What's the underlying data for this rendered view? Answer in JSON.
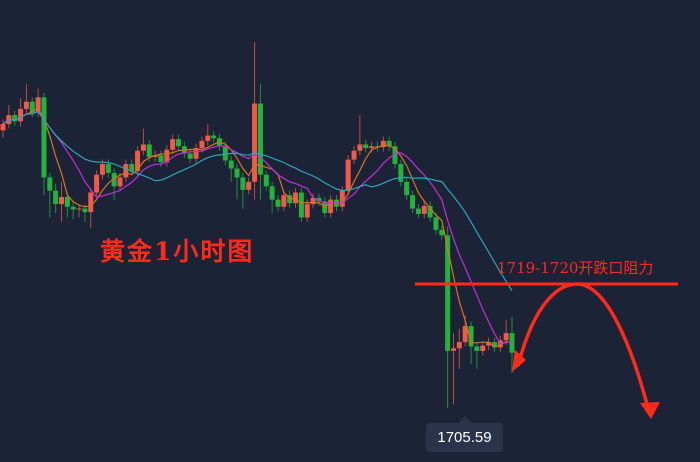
{
  "chart_data": {
    "type": "candlestick",
    "title": "黄金1小时图",
    "colors": {
      "up": "#ef5a4a",
      "down": "#22b33a",
      "ma_fast": "#d9731e",
      "ma_mid": "#c42fd6",
      "ma_slow": "#2aa7b8",
      "annotation": "#ff2a1a",
      "background": "#1c2336"
    },
    "grid": false,
    "candles_ohlc": [
      [
        1736.8,
        1738.0,
        1736.0,
        1737.5
      ],
      [
        1737.5,
        1739.6,
        1737.0,
        1738.5
      ],
      [
        1738.5,
        1739.0,
        1737.3,
        1737.8
      ],
      [
        1737.8,
        1740.4,
        1737.2,
        1739.2
      ],
      [
        1739.2,
        1742.0,
        1738.7,
        1740.0
      ],
      [
        1740.0,
        1740.5,
        1738.3,
        1738.8
      ],
      [
        1738.8,
        1741.5,
        1738.3,
        1740.5
      ],
      [
        1740.5,
        1741.0,
        1729.5,
        1731.5
      ],
      [
        1731.5,
        1732.0,
        1727.0,
        1730.0
      ],
      [
        1730.0,
        1730.8,
        1727.5,
        1728.5
      ],
      [
        1728.5,
        1731.0,
        1726.5,
        1729.3
      ],
      [
        1729.3,
        1729.8,
        1727.0,
        1728.2
      ],
      [
        1728.2,
        1728.7,
        1726.8,
        1727.9
      ],
      [
        1727.9,
        1728.5,
        1727.0,
        1728.0
      ],
      [
        1728.0,
        1728.5,
        1726.5,
        1727.6
      ],
      [
        1727.6,
        1730.3,
        1725.8,
        1729.8
      ],
      [
        1729.8,
        1732.3,
        1729.3,
        1731.8
      ],
      [
        1731.8,
        1733.5,
        1731.3,
        1733.0
      ],
      [
        1733.0,
        1733.5,
        1731.5,
        1732.0
      ],
      [
        1732.0,
        1732.5,
        1729.0,
        1730.5
      ],
      [
        1730.5,
        1732.0,
        1730.0,
        1731.5
      ],
      [
        1731.5,
        1733.5,
        1731.0,
        1733.0
      ],
      [
        1733.0,
        1733.5,
        1731.7,
        1732.2
      ],
      [
        1732.2,
        1735.0,
        1731.7,
        1734.5
      ],
      [
        1734.5,
        1737.0,
        1734.0,
        1735.2
      ],
      [
        1735.2,
        1735.7,
        1733.3,
        1733.8
      ],
      [
        1733.8,
        1734.5,
        1733.3,
        1734.0
      ],
      [
        1734.0,
        1734.5,
        1732.7,
        1733.2
      ],
      [
        1733.2,
        1735.1,
        1732.7,
        1734.6
      ],
      [
        1734.6,
        1736.3,
        1734.1,
        1735.8
      ],
      [
        1735.8,
        1736.3,
        1734.5,
        1735.0
      ],
      [
        1735.0,
        1735.5,
        1733.7,
        1734.2
      ],
      [
        1734.2,
        1734.7,
        1733.1,
        1733.6
      ],
      [
        1733.6,
        1735.3,
        1733.1,
        1734.8
      ],
      [
        1734.8,
        1736.1,
        1734.3,
        1735.6
      ],
      [
        1735.6,
        1737.5,
        1735.1,
        1736.2
      ],
      [
        1736.2,
        1736.7,
        1735.4,
        1735.9
      ],
      [
        1735.9,
        1736.4,
        1734.5,
        1735.0
      ],
      [
        1735.0,
        1735.5,
        1732.9,
        1733.4
      ],
      [
        1733.4,
        1733.9,
        1731.0,
        1732.5
      ],
      [
        1732.5,
        1733.0,
        1729.0,
        1731.5
      ],
      [
        1731.5,
        1732.0,
        1728.0,
        1730.1
      ],
      [
        1730.1,
        1731.5,
        1729.6,
        1731.0
      ],
      [
        1731.0,
        1746.7,
        1729.0,
        1739.8
      ],
      [
        1739.8,
        1742.0,
        1729.0,
        1731.8
      ],
      [
        1731.8,
        1732.3,
        1730.0,
        1730.5
      ],
      [
        1730.5,
        1731.0,
        1727.5,
        1729.0
      ],
      [
        1729.0,
        1729.5,
        1727.7,
        1728.2
      ],
      [
        1728.2,
        1730.0,
        1727.7,
        1729.5
      ],
      [
        1729.5,
        1730.0,
        1728.1,
        1728.6
      ],
      [
        1728.6,
        1730.3,
        1728.1,
        1729.8
      ],
      [
        1729.8,
        1730.3,
        1726.5,
        1727.0
      ],
      [
        1727.0,
        1729.0,
        1726.5,
        1728.5
      ],
      [
        1728.5,
        1729.7,
        1728.0,
        1729.2
      ],
      [
        1729.2,
        1729.7,
        1728.3,
        1728.8
      ],
      [
        1728.8,
        1729.3,
        1727.0,
        1727.5
      ],
      [
        1727.5,
        1729.5,
        1727.0,
        1729.0
      ],
      [
        1729.0,
        1729.5,
        1727.7,
        1728.2
      ],
      [
        1728.2,
        1730.5,
        1727.7,
        1730.0
      ],
      [
        1730.0,
        1734.0,
        1729.5,
        1733.5
      ],
      [
        1733.5,
        1735.0,
        1733.0,
        1734.5
      ],
      [
        1734.5,
        1738.5,
        1734.0,
        1735.2
      ],
      [
        1735.2,
        1735.7,
        1734.3,
        1734.8
      ],
      [
        1734.8,
        1735.5,
        1734.3,
        1735.0
      ],
      [
        1735.0,
        1735.5,
        1734.4,
        1734.9
      ],
      [
        1734.9,
        1736.1,
        1734.4,
        1735.6
      ],
      [
        1735.6,
        1736.1,
        1734.5,
        1735.0
      ],
      [
        1735.0,
        1735.5,
        1732.5,
        1733.0
      ],
      [
        1733.0,
        1733.5,
        1730.5,
        1731.0
      ],
      [
        1731.0,
        1731.5,
        1729.0,
        1729.5
      ],
      [
        1729.5,
        1730.0,
        1727.5,
        1728.0
      ],
      [
        1728.0,
        1728.5,
        1726.9,
        1727.4
      ],
      [
        1727.4,
        1728.8,
        1726.9,
        1728.3
      ],
      [
        1728.3,
        1728.8,
        1726.5,
        1727.0
      ],
      [
        1727.0,
        1727.5,
        1725.1,
        1725.6
      ],
      [
        1725.6,
        1726.1,
        1724.5,
        1725.0
      ],
      [
        1725.0,
        1726.0,
        1705.59,
        1712.0
      ],
      [
        1712.0,
        1714.0,
        1706.0,
        1712.3
      ],
      [
        1712.3,
        1714.5,
        1710.0,
        1713.0
      ],
      [
        1713.0,
        1716.0,
        1712.5,
        1714.8
      ],
      [
        1714.8,
        1715.3,
        1710.5,
        1712.5
      ],
      [
        1712.5,
        1713.0,
        1710.0,
        1712.0
      ],
      [
        1712.0,
        1713.1,
        1711.5,
        1712.6
      ],
      [
        1712.6,
        1713.5,
        1712.1,
        1713.0
      ],
      [
        1713.0,
        1713.5,
        1711.9,
        1712.4
      ],
      [
        1712.4,
        1713.7,
        1711.9,
        1713.2
      ],
      [
        1713.2,
        1715.5,
        1712.7,
        1714.0
      ],
      [
        1714.0,
        1715.8,
        1709.5,
        1711.8
      ]
    ],
    "moving_average_periods": [
      5,
      10,
      20
    ],
    "resistance": {
      "label": "1719-1720开跌口阻力",
      "price": 1719.5
    },
    "low_tooltip": {
      "value": "1705.59",
      "price": 1705.59
    },
    "forecast": "rise to resistance then fall"
  }
}
